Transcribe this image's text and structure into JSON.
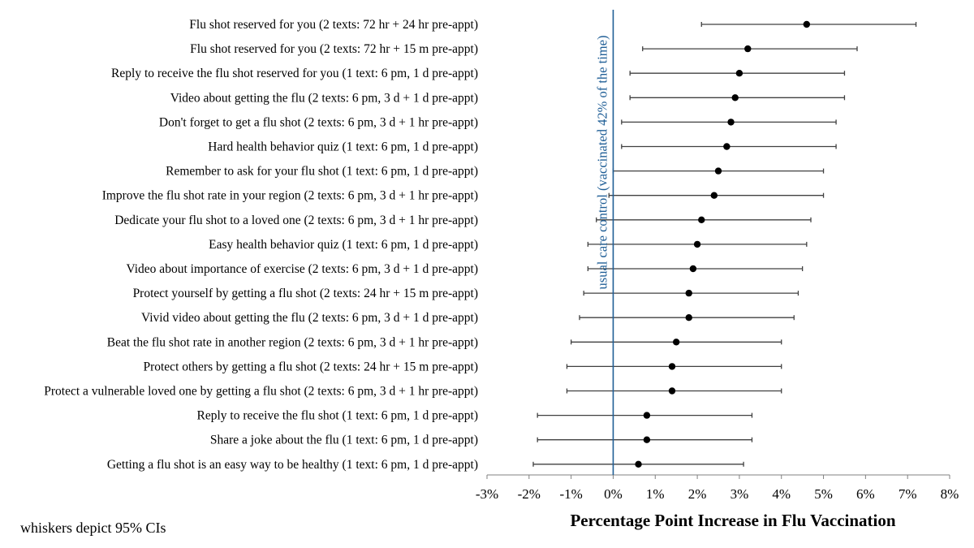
{
  "chart_data": {
    "type": "scatter",
    "subtype": "forest-plot-with-error-bars",
    "xlabel": "Percentage Point Increase in Flu Vaccination",
    "xlim": [
      -3,
      8
    ],
    "x_ticks": [
      -3,
      -2,
      -1,
      0,
      1,
      2,
      3,
      4,
      5,
      6,
      7,
      8
    ],
    "x_tick_labels": [
      "-3%",
      "-2%",
      "-1%",
      "0%",
      "1%",
      "2%",
      "3%",
      "4%",
      "5%",
      "6%",
      "7%",
      "8%"
    ],
    "grid": false,
    "reference_line": {
      "x": 0,
      "label": "usual care control (vaccinated 42% of the time)",
      "color": "#1f5e96"
    },
    "note": "whiskers depict 95% CIs",
    "point_color": "#000000",
    "whisker_color": "#404040",
    "rows": [
      {
        "label": "Flu shot reserved for you (2 texts: 72 hr + 24 hr pre-appt)",
        "estimate": 4.6,
        "ci_low": 2.1,
        "ci_high": 7.2
      },
      {
        "label": "Flu shot reserved for you (2 texts: 72 hr + 15 m pre-appt)",
        "estimate": 3.2,
        "ci_low": 0.7,
        "ci_high": 5.8
      },
      {
        "label": "Reply to receive the flu shot reserved for you (1 text: 6 pm, 1 d pre-appt)",
        "estimate": 3.0,
        "ci_low": 0.4,
        "ci_high": 5.5
      },
      {
        "label": "Video about getting the flu (2 texts: 6 pm, 3 d + 1 d pre-appt)",
        "estimate": 2.9,
        "ci_low": 0.4,
        "ci_high": 5.5
      },
      {
        "label": "Don't forget to get a flu shot (2 texts: 6 pm, 3 d + 1 hr pre-appt)",
        "estimate": 2.8,
        "ci_low": 0.2,
        "ci_high": 5.3
      },
      {
        "label": "Hard health behavior quiz (1 text: 6 pm, 1 d pre-appt)",
        "estimate": 2.7,
        "ci_low": 0.2,
        "ci_high": 5.3
      },
      {
        "label": "Remember to ask for your flu shot (1 text: 6 pm, 1 d pre-appt)",
        "estimate": 2.5,
        "ci_low": 0.0,
        "ci_high": 5.0
      },
      {
        "label": "Improve the flu shot rate in your region (2 texts: 6 pm, 3 d + 1 hr pre-appt)",
        "estimate": 2.4,
        "ci_low": -0.1,
        "ci_high": 5.0
      },
      {
        "label": "Dedicate your flu shot to a loved one (2 texts: 6 pm, 3 d + 1 hr pre-appt)",
        "estimate": 2.1,
        "ci_low": -0.4,
        "ci_high": 4.7
      },
      {
        "label": "Easy health behavior quiz (1 text: 6 pm, 1 d pre-appt)",
        "estimate": 2.0,
        "ci_low": -0.6,
        "ci_high": 4.6
      },
      {
        "label": "Video about importance of exercise (2 texts: 6 pm, 3 d + 1 d pre-appt)",
        "estimate": 1.9,
        "ci_low": -0.6,
        "ci_high": 4.5
      },
      {
        "label": "Protect yourself by getting a flu shot (2 texts: 24 hr + 15 m pre-appt)",
        "estimate": 1.8,
        "ci_low": -0.7,
        "ci_high": 4.4
      },
      {
        "label": "Vivid video about getting the flu (2 texts: 6 pm, 3 d + 1 d pre-appt)",
        "estimate": 1.8,
        "ci_low": -0.8,
        "ci_high": 4.3
      },
      {
        "label": "Beat the flu shot rate in another region (2 texts: 6 pm, 3 d + 1 hr pre-appt)",
        "estimate": 1.5,
        "ci_low": -1.0,
        "ci_high": 4.0
      },
      {
        "label": "Protect others by getting a flu shot (2 texts: 24 hr + 15 m pre-appt)",
        "estimate": 1.4,
        "ci_low": -1.1,
        "ci_high": 4.0
      },
      {
        "label": "Protect a vulnerable loved one by getting a flu shot (2 texts: 6 pm, 3 d + 1 hr pre-appt)",
        "estimate": 1.4,
        "ci_low": -1.1,
        "ci_high": 4.0
      },
      {
        "label": "Reply to receive the flu shot (1 text: 6 pm, 1 d pre-appt)",
        "estimate": 0.8,
        "ci_low": -1.8,
        "ci_high": 3.3
      },
      {
        "label": "Share a joke about the flu (1 text: 6 pm, 1 d pre-appt)",
        "estimate": 0.8,
        "ci_low": -1.8,
        "ci_high": 3.3
      },
      {
        "label": "Getting a flu shot is an easy way to be healthy (1 text: 6 pm, 1 d pre-appt)",
        "estimate": 0.6,
        "ci_low": -1.9,
        "ci_high": 3.1
      }
    ]
  }
}
